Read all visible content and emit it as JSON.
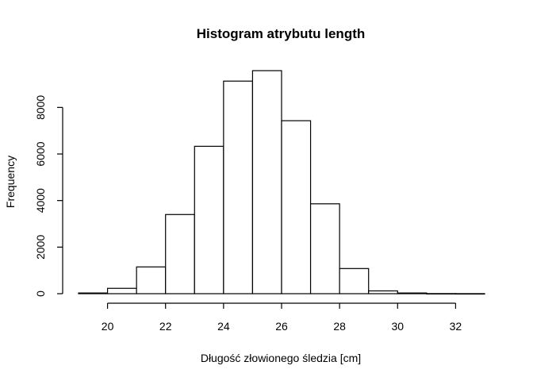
{
  "chart_data": {
    "type": "bar",
    "title": "Histogram atrybutu length",
    "xlabel": "Długość złowionego śledzia [cm]",
    "ylabel": "Frequency",
    "bins": [
      [
        19,
        20
      ],
      [
        20,
        21
      ],
      [
        21,
        22
      ],
      [
        22,
        23
      ],
      [
        23,
        24
      ],
      [
        24,
        25
      ],
      [
        25,
        26
      ],
      [
        26,
        27
      ],
      [
        27,
        28
      ],
      [
        28,
        29
      ],
      [
        29,
        30
      ],
      [
        30,
        31
      ],
      [
        31,
        32
      ],
      [
        32,
        33
      ]
    ],
    "values": [
      30,
      230,
      1150,
      3400,
      6330,
      9130,
      9580,
      7430,
      3860,
      1080,
      120,
      30,
      5,
      2
    ],
    "xlim": [
      19,
      33
    ],
    "ylim": [
      0,
      9580
    ],
    "xticks": [
      20,
      22,
      24,
      26,
      28,
      30,
      32
    ],
    "yticks": [
      0,
      2000,
      4000,
      6000,
      8000
    ],
    "grid": false,
    "colors": {
      "fill": "#ffffff",
      "stroke": "#000000"
    }
  }
}
